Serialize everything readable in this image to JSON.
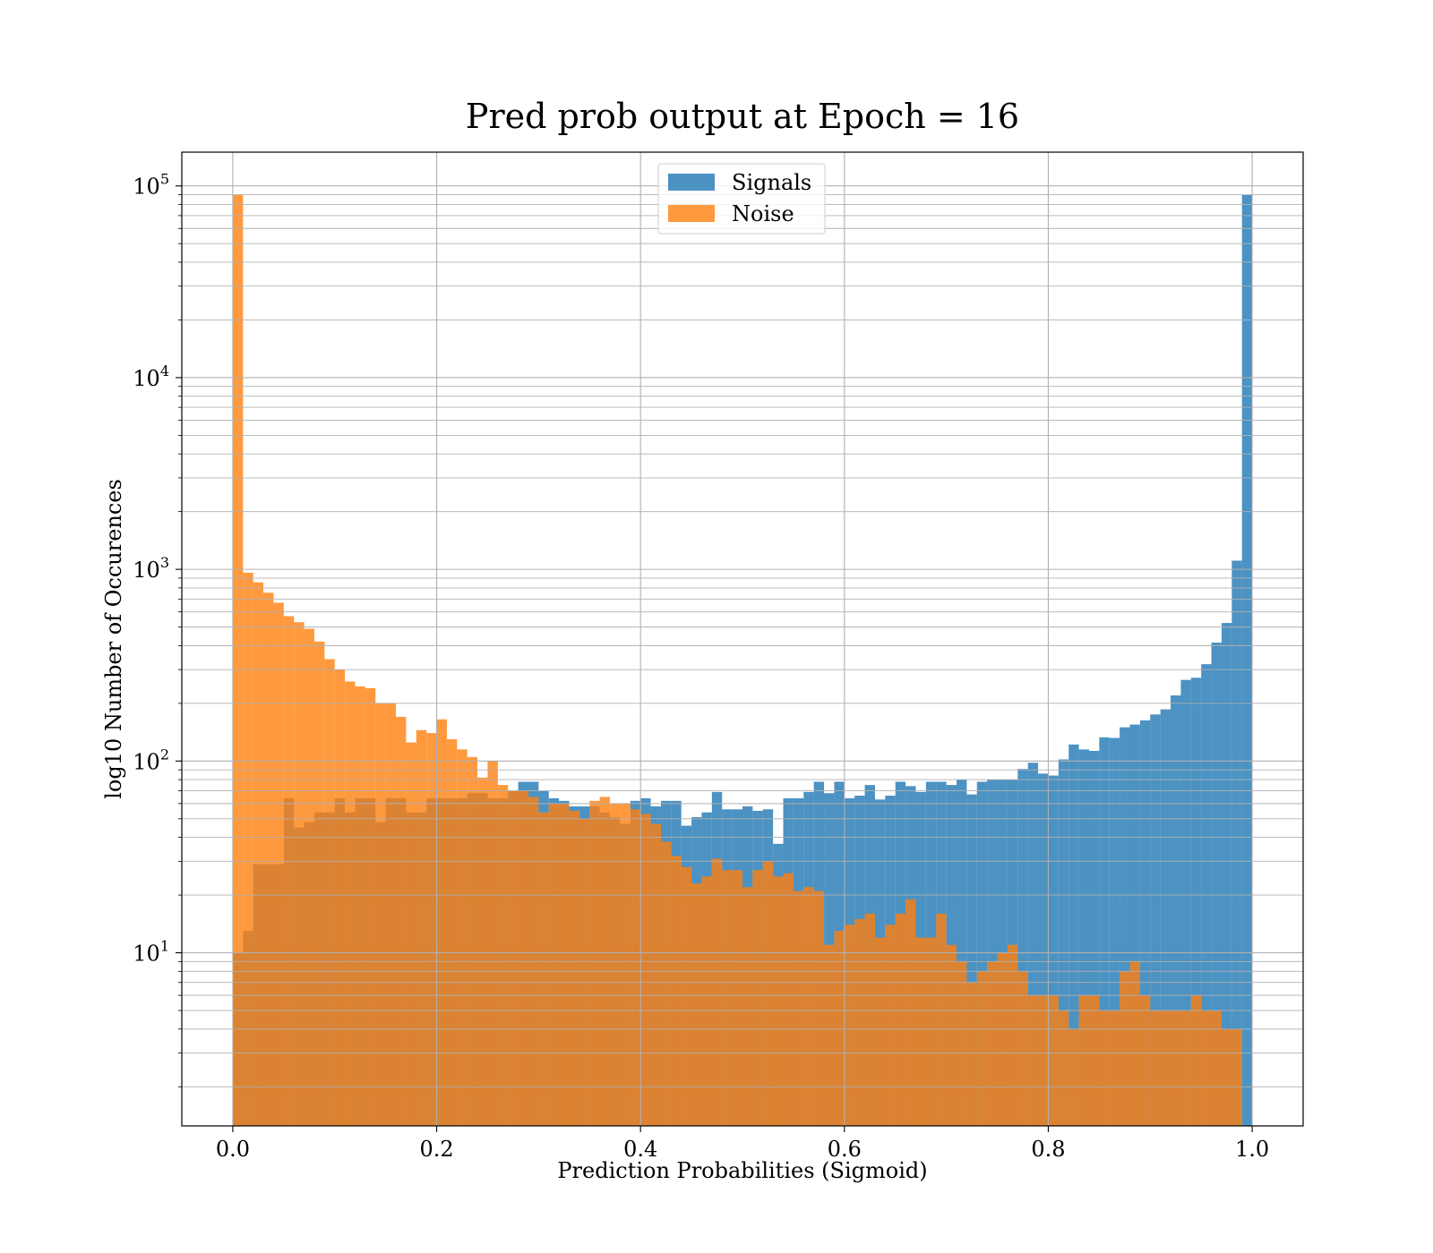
{
  "chart_data": {
    "type": "bar",
    "title": "Pred prob output at Epoch = 16",
    "xlabel": "Prediction Probabilities (Sigmoid)",
    "ylabel": "log10 Number of Occurences",
    "xlim": [
      -0.05,
      1.05
    ],
    "ylim": [
      1.25,
      150000
    ],
    "yscale": "log",
    "grid": true,
    "legend_position": "top-center",
    "bins": 100,
    "bin_range": [
      0,
      1
    ],
    "xticks": [
      {
        "value": 0.0,
        "label": "0.0"
      },
      {
        "value": 0.2,
        "label": "0.2"
      },
      {
        "value": 0.4,
        "label": "0.4"
      },
      {
        "value": 0.6,
        "label": "0.6"
      },
      {
        "value": 0.8,
        "label": "0.8"
      },
      {
        "value": 1.0,
        "label": "1.0"
      }
    ],
    "yticks": [
      {
        "value": 10,
        "base": "10",
        "exp": "1"
      },
      {
        "value": 100,
        "base": "10",
        "exp": "2"
      },
      {
        "value": 1000,
        "base": "10",
        "exp": "3"
      },
      {
        "value": 10000,
        "base": "10",
        "exp": "4"
      },
      {
        "value": 100000,
        "base": "10",
        "exp": "5"
      }
    ],
    "series": [
      {
        "name": "Signals",
        "color": "#1f77b4",
        "opacity": 0.8,
        "values": [
          10,
          13,
          29,
          29,
          29,
          64,
          45,
          48,
          54,
          54,
          64,
          54,
          64,
          64,
          48,
          64,
          64,
          54,
          54,
          64,
          64,
          64,
          64,
          68,
          68,
          64,
          64,
          70,
          78,
          78,
          70,
          64,
          62,
          58,
          58,
          58,
          54,
          51,
          47,
          62,
          64,
          58,
          62,
          62,
          46,
          51,
          54,
          69,
          56,
          56,
          58,
          55,
          56,
          37,
          64,
          64,
          69,
          78,
          68,
          78,
          64,
          66,
          75,
          63,
          66,
          78,
          74,
          69,
          78,
          78,
          75,
          80,
          67,
          78,
          80,
          80,
          80,
          91,
          98,
          86,
          84,
          102,
          122,
          115,
          113,
          133,
          132,
          150,
          155,
          163,
          175,
          186,
          220,
          265,
          272,
          320,
          415,
          525,
          1110,
          90000
        ]
      },
      {
        "name": "Noise",
        "color": "#ff7f0e",
        "opacity": 0.8,
        "values": [
          90000,
          960,
          855,
          755,
          670,
          570,
          530,
          490,
          420,
          340,
          300,
          260,
          245,
          240,
          200,
          200,
          170,
          125,
          145,
          140,
          165,
          130,
          115,
          105,
          82,
          100,
          75,
          70,
          70,
          65,
          54,
          60,
          60,
          55,
          50,
          62,
          65,
          60,
          60,
          56,
          53,
          47,
          38,
          32,
          28,
          23,
          25,
          31,
          27,
          27,
          22,
          27,
          30,
          25,
          26,
          21,
          22,
          21,
          11,
          13,
          14,
          15,
          16,
          12,
          14,
          16,
          19,
          12,
          12,
          16,
          11,
          9,
          7,
          8,
          9,
          10,
          11,
          8,
          6,
          6,
          6,
          5,
          4,
          6,
          6,
          5,
          5,
          8,
          9,
          6,
          5,
          5,
          5,
          5,
          6,
          5,
          5,
          4,
          4,
          1
        ]
      }
    ]
  }
}
